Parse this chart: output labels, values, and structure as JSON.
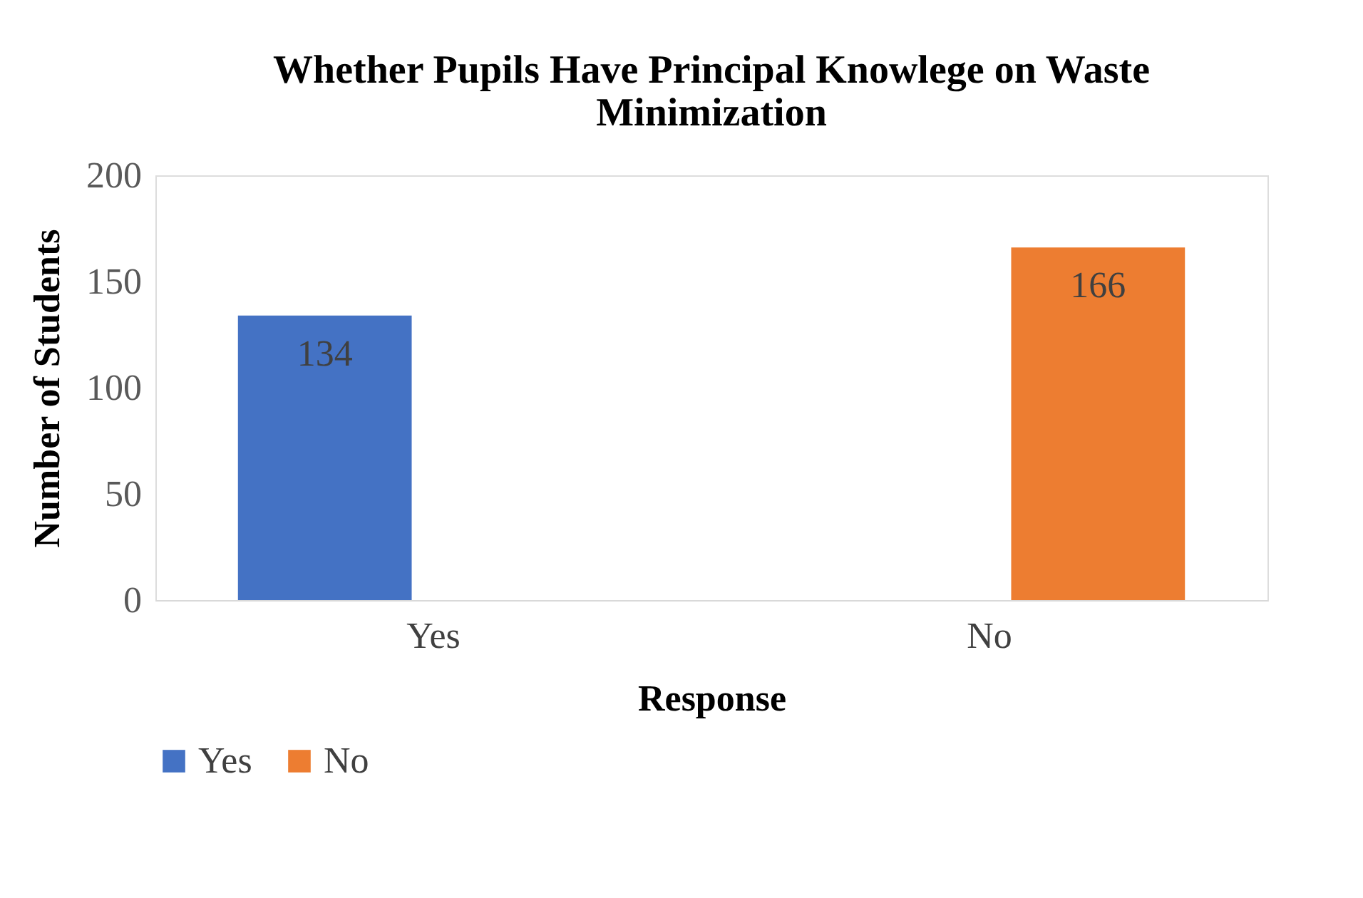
{
  "chart_data": {
    "type": "bar",
    "title": "Whether Pupils Have Principal Knowlege on Waste Minimization",
    "xlabel": "Response",
    "ylabel": "Number of Students",
    "categories": [
      "Yes",
      "No"
    ],
    "series": [
      {
        "name": "Yes",
        "color": "#4472c4",
        "values": [
          134,
          null
        ]
      },
      {
        "name": "No",
        "color": "#ed7d31",
        "values": [
          null,
          166
        ]
      }
    ],
    "ylim": [
      0,
      200
    ],
    "yticks": [
      0,
      50,
      100,
      150,
      200
    ],
    "grid": false,
    "legend": "bottom",
    "data_labels": true
  }
}
